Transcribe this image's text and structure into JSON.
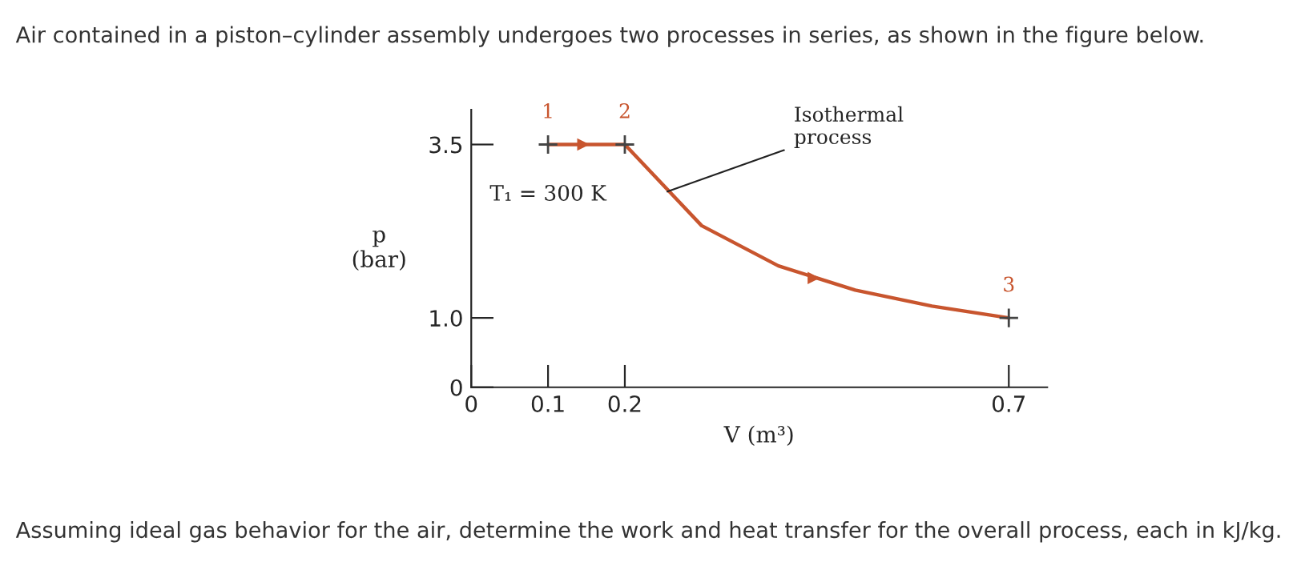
{
  "chart_data": {
    "type": "line",
    "title": "Air contained in a piston–cylinder assembly undergoes two processes in series, as shown in the figure below.",
    "xlabel": "V (m³)",
    "ylabel": "p\n(bar)",
    "series": [
      {
        "color": "#c8552e",
        "x": [
          0.1,
          0.2,
          0.3,
          0.4,
          0.5,
          0.6,
          0.7
        ],
        "values": [
          3.5,
          3.5,
          2.33,
          1.75,
          1.4,
          1.17,
          1.0
        ],
        "marker": "none"
      },
      {
        "type": "scatter",
        "color": "#444444",
        "x": [
          0.1,
          0.2,
          0.7
        ],
        "values": [
          3.5,
          3.5,
          1.0
        ],
        "marker": "cross"
      }
    ],
    "xlim": [
      0,
      0.75
    ],
    "xticks": [
      0,
      0.1,
      0.2,
      0.7
    ],
    "ylim": [
      0,
      4.0
    ],
    "yticks": [
      0,
      {
        "value": 1.0,
        "label": "1.0"
      },
      3.5
    ],
    "grid": false,
    "legend": false,
    "annotations": [
      {
        "text": "1",
        "x": 0.1,
        "y": 3.5
      },
      {
        "text": "2",
        "x": 0.2,
        "y": 3.5
      },
      {
        "text": "3",
        "x": 0.7,
        "y": 1.0
      },
      {
        "text": "T₁ = 300 K",
        "x": 0.1,
        "y": 3.5
      },
      {
        "text": "Isothermal\nprocess",
        "x": 0.25,
        "y": 2.8
      },
      "Assuming ideal gas behavior for the air, determine the work and heat transfer for the overall process, each in kJ/kg."
    ]
  }
}
